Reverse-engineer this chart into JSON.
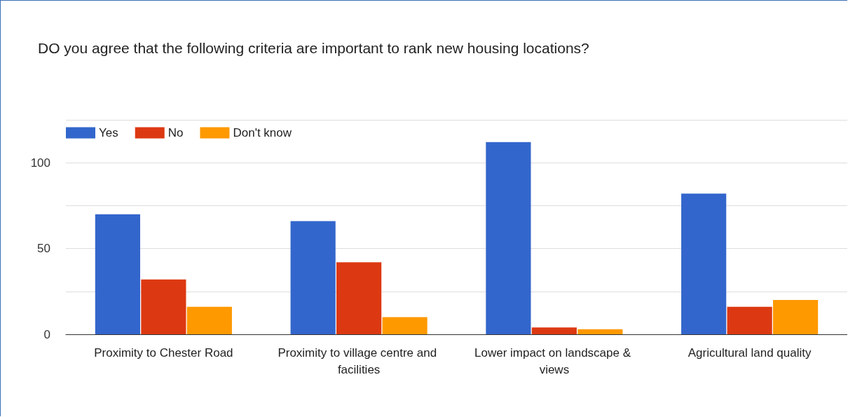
{
  "chart_data": {
    "type": "bar",
    "title": "DO you agree that the following criteria are important to rank new housing locations?",
    "categories": [
      "Proximity to Chester Road",
      "Proximity to village centre and facilities",
      "Lower impact on landscape & views",
      "Agricultural land quality"
    ],
    "series": [
      {
        "name": "Yes",
        "color": "#3366cc",
        "values": [
          70,
          66,
          112,
          82
        ]
      },
      {
        "name": "No",
        "color": "#dc3912",
        "values": [
          32,
          42,
          4,
          16
        ]
      },
      {
        "name": "Don't know",
        "color": "#ff9900",
        "values": [
          16,
          10,
          3,
          20
        ]
      }
    ],
    "ylim": [
      0,
      125
    ],
    "yticks": [
      0,
      {
        "value": 25,
        "label": null
      },
      50,
      {
        "value": 75,
        "label": null
      },
      100,
      {
        "value": 125,
        "label": null
      }
    ],
    "grid": "y",
    "legend": "top left"
  }
}
